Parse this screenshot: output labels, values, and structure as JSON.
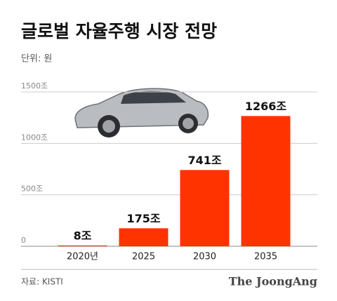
{
  "chart_data": {
    "type": "bar",
    "title": "글로벌 자율주행 시장 전망",
    "subtitle": "단위: 원",
    "categories": [
      "2020년",
      "2025",
      "2030",
      "2035"
    ],
    "values": [
      8,
      175,
      741,
      1266
    ],
    "value_labels": [
      "8조",
      "175조",
      "741조",
      "1266조"
    ],
    "color": "#ff3300",
    "ylim": [
      0,
      1500
    ],
    "yticks": [
      0,
      {
        "value": 500,
        "label": "500조"
      },
      {
        "value": 1000,
        "label": "1000조"
      },
      {
        "value": 1500,
        "label": "1500조"
      }
    ],
    "grid": true,
    "source": "자료: KISTI",
    "brand": "The JoongAng"
  }
}
